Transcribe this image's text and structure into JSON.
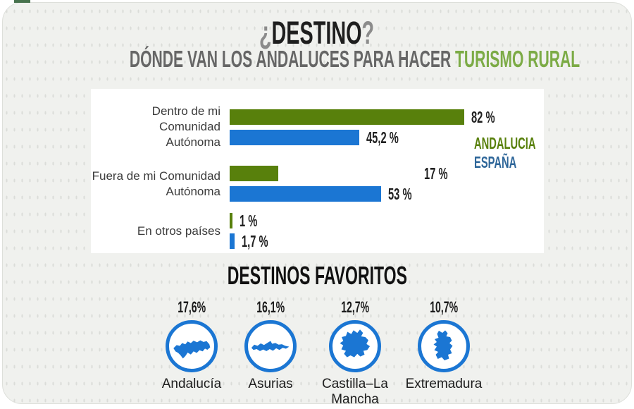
{
  "colors": {
    "andalucia_green": "#58800C",
    "espana_blue": "#1B76D3",
    "legend_espana_blue": "#2E6699",
    "subtitle_green": "#7CAB46",
    "title_dark": "#1E1E1E",
    "muted_gray": "#8B8B8B",
    "subtitle_gray": "#666666",
    "card_bg": "#F0F1EE"
  },
  "header": {
    "title_open_mark": "¿",
    "title_word": "DESTINO",
    "title_close_mark": "?",
    "subtitle_prefix": "DÓNDE VAN LOS ANDALUCES PARA HACER",
    "subtitle_highlight": "TURISMO RURAL"
  },
  "chart_data": {
    "type": "bar",
    "orientation": "horizontal",
    "categories": [
      "Dentro de mi Comunidad Autónoma",
      "Fuera de mi Comunidad Autónoma",
      "En otros países"
    ],
    "category_lines": [
      [
        "Dentro de mi Comunidad",
        "Autónoma"
      ],
      [
        "Fuera de mi Comunidad",
        "Autónoma"
      ],
      [
        "En otros países"
      ]
    ],
    "series": [
      {
        "name": "ANDALUCIA",
        "color": "#58800C",
        "values": [
          82,
          17,
          1
        ],
        "value_labels": [
          "82 %",
          "17 %",
          "1 %"
        ]
      },
      {
        "name": "ESPAÑA",
        "color": "#1B76D3",
        "values": [
          45.2,
          53,
          1.7
        ],
        "value_labels": [
          "45,2 %",
          "53 %",
          "1,7 %"
        ]
      }
    ],
    "xlim": [
      0,
      100
    ],
    "grid": false,
    "legend_position": "right-middle"
  },
  "favorites": {
    "section_title": "DESTINOS FAVORITOS",
    "items": [
      {
        "value_label": "17,6%",
        "name": "Andalucía",
        "icon": "andalucia-map-icon"
      },
      {
        "value_label": "16,1%",
        "name": "Asurias",
        "icon": "asturias-map-icon"
      },
      {
        "value_label": "12,7%",
        "name": "Castilla–La Mancha",
        "icon": "castilla-la-mancha-map-icon"
      },
      {
        "value_label": "10,7%",
        "name": "Extremadura",
        "icon": "extremadura-map-icon"
      }
    ]
  }
}
